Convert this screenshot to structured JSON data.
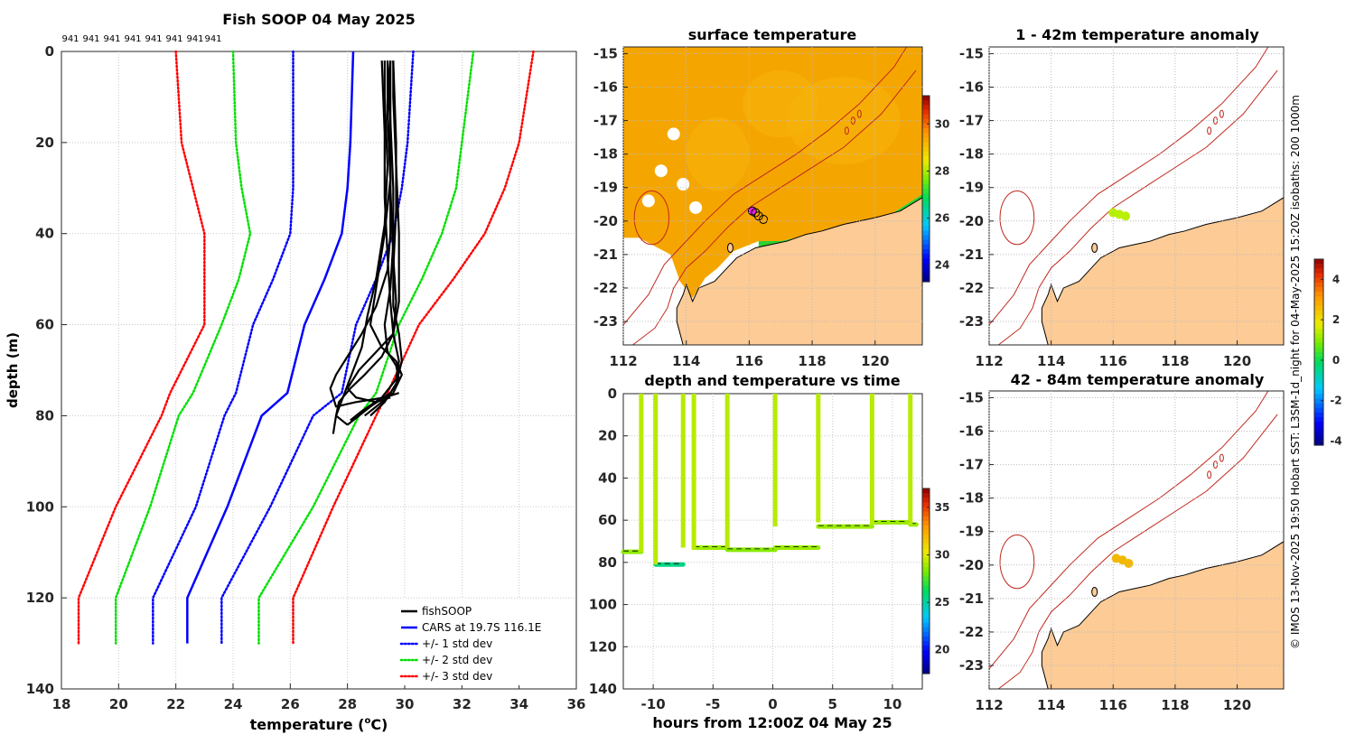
{
  "profile": {
    "chart_data": {
      "type": "line",
      "title": "Fish SOOP 04 May 2025",
      "xlabel_prefix": "temperature (",
      "xlabel_unit_sup": "o",
      "xlabel_suffix": "C)",
      "ylabel": "depth (m)",
      "xlim": [
        18,
        36
      ],
      "ylim": [
        0,
        140
      ],
      "xticks": [
        "18",
        "20",
        "22",
        "24",
        "26",
        "28",
        "30",
        "32",
        "34",
        "36"
      ],
      "yticks": [
        "0",
        "20",
        "40",
        "60",
        "80",
        "100",
        "120",
        "140"
      ],
      "top_labels": [
        "941",
        "941",
        "941",
        "941",
        "941",
        "941",
        "941",
        "941"
      ],
      "depths": [
        0,
        20,
        30,
        40,
        50,
        60,
        75,
        80,
        100,
        120,
        130
      ],
      "cars_mean": [
        28.2,
        28.1,
        28.0,
        27.8,
        27.2,
        26.5,
        25.9,
        25.0,
        23.8,
        22.4,
        22.4
      ],
      "std_minus1": [
        26.1,
        26.1,
        26.1,
        26.0,
        25.4,
        24.7,
        24.1,
        23.7,
        22.7,
        21.2,
        21.2
      ],
      "std_plus1": [
        30.3,
        30.1,
        29.9,
        29.6,
        29.0,
        28.3,
        27.8,
        26.8,
        25.3,
        23.6,
        23.6
      ],
      "std_minus2": [
        24.0,
        24.1,
        24.3,
        24.6,
        24.2,
        23.6,
        22.6,
        22.1,
        21.1,
        19.9,
        19.9
      ],
      "std_plus2": [
        32.4,
        32.0,
        31.8,
        31.3,
        30.6,
        29.8,
        29.0,
        28.4,
        26.8,
        24.9,
        24.9
      ],
      "std_minus3": [
        22.0,
        22.2,
        22.6,
        23.0,
        23.0,
        23.0,
        21.8,
        21.5,
        19.9,
        18.6,
        18.6
      ],
      "std_plus3": [
        34.5,
        34.0,
        33.5,
        32.8,
        31.7,
        30.5,
        29.4,
        29.0,
        27.5,
        26.1,
        26.1
      ],
      "fish_profiles": [
        {
          "t": [
            29.3,
            29.3,
            29.4,
            29.3,
            29.0,
            28.7,
            28.5,
            28.2,
            27.9,
            27.6,
            27.5
          ],
          "d": [
            2,
            10,
            25,
            38,
            50,
            58,
            65,
            70,
            75,
            80,
            84
          ]
        },
        {
          "t": [
            29.5,
            29.5,
            29.5,
            29.6,
            29.7,
            29.6,
            29.0,
            28.4,
            28.0,
            28.3,
            29.0,
            29.5
          ],
          "d": [
            2,
            12,
            30,
            45,
            55,
            62,
            66,
            70,
            74,
            76,
            77,
            76
          ]
        },
        {
          "t": [
            29.4,
            29.5,
            29.6,
            29.6,
            29.5,
            29.3,
            29.4,
            29.7,
            29.8,
            29.5,
            28.8,
            28.2,
            28.0
          ],
          "d": [
            2,
            15,
            30,
            42,
            52,
            60,
            66,
            69,
            72,
            75,
            78,
            81,
            82
          ]
        },
        {
          "t": [
            29.6,
            29.6,
            29.7,
            29.8,
            29.8,
            29.6,
            29.2,
            28.6,
            28.1,
            27.7,
            27.6,
            28.0
          ],
          "d": [
            2,
            10,
            25,
            40,
            55,
            62,
            67,
            71,
            74,
            77,
            80,
            82
          ]
        },
        {
          "t": [
            29.5,
            29.4,
            29.5,
            29.5,
            29.4,
            29.0,
            28.5,
            28.0,
            27.6,
            27.4,
            27.6,
            28.3,
            29.3,
            29.8
          ],
          "d": [
            2,
            14,
            28,
            40,
            48,
            56,
            62,
            67,
            71,
            74,
            78,
            77,
            76,
            75
          ]
        },
        {
          "t": [
            29.2,
            29.3,
            29.3,
            29.4,
            29.5,
            29.6,
            29.8,
            29.7,
            29.2,
            28.5,
            28.1
          ],
          "d": [
            2,
            18,
            32,
            45,
            55,
            62,
            68,
            72,
            76,
            79,
            81
          ]
        },
        {
          "t": [
            29.4,
            29.4,
            29.5,
            29.3,
            29.0,
            28.8,
            29.2,
            29.7,
            29.9,
            29.6,
            29.0,
            28.6
          ],
          "d": [
            2,
            12,
            28,
            40,
            52,
            60,
            65,
            68,
            71,
            75,
            78,
            80
          ]
        },
        {
          "t": [
            29.6,
            29.7,
            29.7,
            29.6,
            29.6,
            29.8,
            29.9,
            29.7,
            29.3,
            28.8
          ],
          "d": [
            2,
            20,
            35,
            48,
            56,
            62,
            68,
            73,
            77,
            80
          ]
        }
      ],
      "legend": {
        "placement": "bottom-right",
        "items": [
          {
            "label": "fishSOOP",
            "color": "#000000",
            "style": "solid"
          },
          {
            "label": "CARS at 19.7S 116.1E",
            "color": "#0000ff",
            "style": "solid"
          },
          {
            "label": "+/- 1 std dev",
            "color": "#0000ff",
            "style": "dotted"
          },
          {
            "label": "+/- 2 std dev",
            "color": "#00e000",
            "style": "dotted"
          },
          {
            "label": "+/- 3 std dev",
            "color": "#ff0000",
            "style": "dotted"
          }
        ]
      }
    }
  },
  "maps": {
    "sst_title": "surface temperature",
    "anom1_title": "1 - 42m temperature anomaly",
    "anom2_title": "42 - 84m temperature anomaly",
    "lon_ticks": [
      "112",
      "114",
      "116",
      "118",
      "120"
    ],
    "lat_ticks": [
      "-15",
      "-16",
      "-17",
      "-18",
      "-19",
      "-20",
      "-21",
      "-22",
      "-23"
    ],
    "lat_ticks_anom": [
      "-15",
      "-16",
      "-17",
      "-18",
      "-19",
      "-20",
      "-21",
      "-22",
      "-23"
    ],
    "sst_colorbar_ticks": [
      "30",
      "28",
      "26",
      "24"
    ],
    "anom_colorbar_ticks": [
      "4",
      "2",
      "0",
      "-2",
      "-4"
    ],
    "lon_range": [
      112,
      121.5
    ],
    "lat_range": [
      -23.7,
      -14.8
    ],
    "sst_range": [
      23.3,
      31.2
    ],
    "anom_range": [
      -4.2,
      5.0
    ],
    "sst_points": [
      [
        116.1,
        -19.7
      ],
      [
        116.3,
        -19.85
      ],
      [
        116.45,
        -19.95
      ],
      [
        116.2,
        -19.75
      ]
    ],
    "anom1_points": [
      [
        116.0,
        -19.75
      ],
      [
        116.2,
        -19.8
      ],
      [
        116.4,
        -19.85
      ]
    ],
    "anom2_points": [
      [
        116.1,
        -19.8
      ],
      [
        116.3,
        -19.85
      ],
      [
        116.5,
        -19.95
      ]
    ],
    "anom1_color": "#b8f000",
    "anom2_color": "#f2b800",
    "land_color": "#fccb96",
    "isobath_color": "#c0281e"
  },
  "timeseries": {
    "chart_data": {
      "type": "scatter",
      "title": "depth and temperature vs time",
      "xlabel": "hours from 12:00Z 04 May 25",
      "xticks": [
        "-10",
        "-5",
        "0",
        "5",
        "10"
      ],
      "yticks": [
        "0",
        "20",
        "40",
        "60",
        "80",
        "100",
        "120",
        "140"
      ],
      "xlim": [
        -12.5,
        12.5
      ],
      "ylim": [
        0,
        140
      ],
      "colorbar_ticks": [
        "35",
        "30",
        "25",
        "20"
      ],
      "colorbar_range": [
        17.5,
        37.0
      ],
      "dive_times": [
        -11.0,
        -9.8,
        -7.5,
        -6.6,
        -3.8,
        0.2,
        3.8,
        8.3,
        11.5
      ],
      "bottom_segments": [
        {
          "t0": -12.5,
          "t1": -11.0,
          "d": 75,
          "temp": 28.6
        },
        {
          "t0": -9.8,
          "t1": -7.5,
          "d": 81,
          "temp": 25.5
        },
        {
          "t0": -6.6,
          "t1": -3.8,
          "d": 73,
          "temp": 28.8
        },
        {
          "t0": -3.8,
          "t1": 0.2,
          "d": 74,
          "temp": 28.5
        },
        {
          "t0": 0.2,
          "t1": 3.8,
          "d": 73,
          "temp": 28.8
        },
        {
          "t0": 3.8,
          "t1": 8.3,
          "d": 63,
          "temp": 28.8
        },
        {
          "t0": 8.3,
          "t1": 11.5,
          "d": 61,
          "temp": 28.8
        },
        {
          "t0": 11.5,
          "t1": 12.0,
          "d": 62,
          "temp": 28.8
        }
      ],
      "surface_temp": 29.3
    }
  },
  "side_annotation": "© IMOS 13-Nov-2025 19:50 Hobart SST: L3SM-1d_night for 04-May-2025 15:20Z isobaths: 200  1000m"
}
